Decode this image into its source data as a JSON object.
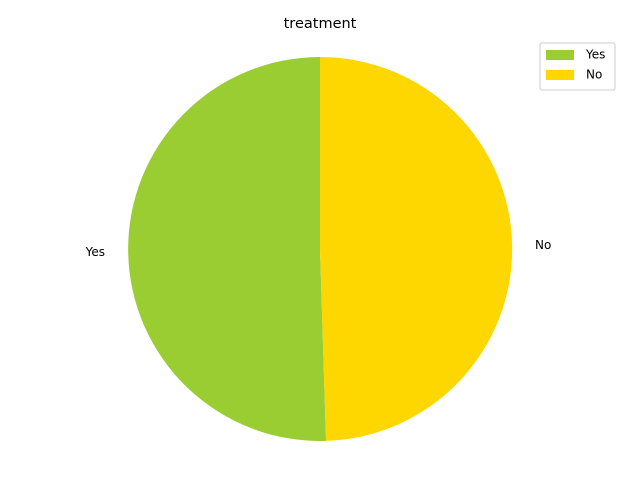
{
  "chart_data": {
    "type": "pie",
    "title": "treatment",
    "categories": [
      "Yes",
      "No"
    ],
    "values": [
      50.5,
      49.5
    ],
    "colors": [
      "#9ACD32",
      "#FFD700"
    ],
    "start_angle_deg": 90,
    "direction": "counterclockwise",
    "legend": {
      "placement": "top-right",
      "entries": [
        "Yes",
        "No"
      ]
    }
  }
}
